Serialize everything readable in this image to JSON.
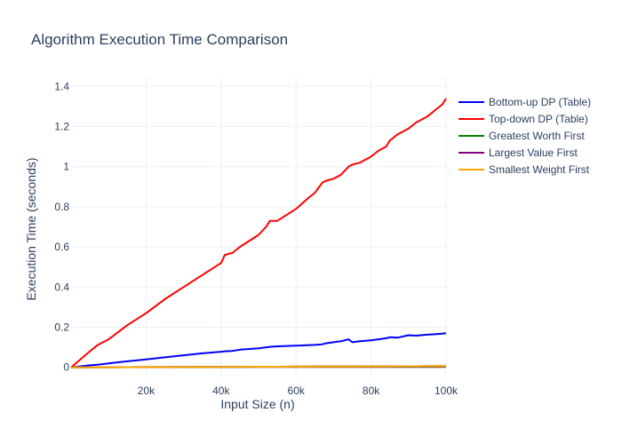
{
  "chart_data": {
    "type": "line",
    "title": "Algorithm Execution Time Comparison",
    "xlabel": "Input Size (n)",
    "ylabel": "Execution Time (seconds)",
    "xlim": [
      0,
      100000
    ],
    "ylim": [
      -0.05,
      1.45
    ],
    "x_ticks": [
      20000,
      40000,
      60000,
      80000,
      100000
    ],
    "x_tick_labels": [
      "20k",
      "40k",
      "60k",
      "80k",
      "100k"
    ],
    "y_ticks": [
      0,
      0.2,
      0.4,
      0.6,
      0.8,
      1,
      1.2,
      1.4
    ],
    "y_tick_labels": [
      "0",
      "0.2",
      "0.4",
      "0.6",
      "0.8",
      "1",
      "1.2",
      "1.4"
    ],
    "grid": true,
    "legend_position": "top-right outside",
    "x": [
      0,
      5000,
      7000,
      10000,
      15000,
      20000,
      25000,
      30000,
      35000,
      40000,
      41000,
      43000,
      45000,
      50000,
      52000,
      53000,
      55000,
      60000,
      63000,
      65000,
      67000,
      68000,
      70000,
      72000,
      74000,
      75000,
      77000,
      80000,
      82000,
      84000,
      85000,
      87000,
      90000,
      92000,
      95000,
      97000,
      99000,
      100000
    ],
    "series": [
      {
        "name": "Bottom-up DP (Table)",
        "color": "#0000ff",
        "values": [
          0,
          0.01,
          0.013,
          0.02,
          0.03,
          0.04,
          0.05,
          0.06,
          0.07,
          0.078,
          0.08,
          0.082,
          0.088,
          0.095,
          0.1,
          0.102,
          0.105,
          0.108,
          0.11,
          0.112,
          0.115,
          0.12,
          0.125,
          0.13,
          0.14,
          0.125,
          0.13,
          0.135,
          0.14,
          0.145,
          0.15,
          0.148,
          0.16,
          0.158,
          0.163,
          0.165,
          0.168,
          0.17
        ]
      },
      {
        "name": "Top-down DP (Table)",
        "color": "#ff0000",
        "values": [
          0,
          0.08,
          0.11,
          0.14,
          0.21,
          0.27,
          0.34,
          0.4,
          0.46,
          0.52,
          0.56,
          0.57,
          0.6,
          0.66,
          0.7,
          0.73,
          0.73,
          0.79,
          0.84,
          0.87,
          0.92,
          0.93,
          0.94,
          0.96,
          1.0,
          1.01,
          1.02,
          1.05,
          1.08,
          1.1,
          1.13,
          1.16,
          1.19,
          1.22,
          1.25,
          1.28,
          1.31,
          1.34
        ]
      },
      {
        "name": "Greatest Worth First",
        "color": "#008000",
        "values": [
          0,
          0.0003,
          0.0004,
          0.0006,
          0.0009,
          0.0012,
          0.0015,
          0.0018,
          0.002,
          0.0023,
          0.0024,
          0.0025,
          0.0026,
          0.0029,
          0.003,
          0.0031,
          0.0032,
          0.0035,
          0.0037,
          0.0038,
          0.0039,
          0.004,
          0.0041,
          0.0042,
          0.0043,
          0.0044,
          0.0045,
          0.0047,
          0.0048,
          0.0049,
          0.005,
          0.0051,
          0.0053,
          0.0054,
          0.0056,
          0.0057,
          0.0058,
          0.0059
        ]
      },
      {
        "name": "Largest Value First",
        "color": "#800080",
        "values": [
          0,
          0.0003,
          0.0004,
          0.0006,
          0.0009,
          0.0012,
          0.0015,
          0.0018,
          0.002,
          0.0023,
          0.0024,
          0.0025,
          0.0026,
          0.0029,
          0.003,
          0.0031,
          0.0032,
          0.0035,
          0.0037,
          0.0038,
          0.0039,
          0.004,
          0.0041,
          0.0042,
          0.0043,
          0.0044,
          0.0045,
          0.0047,
          0.0048,
          0.0049,
          0.005,
          0.0051,
          0.0053,
          0.0054,
          0.0056,
          0.0057,
          0.0058,
          0.0059
        ]
      },
      {
        "name": "Smallest Weight First",
        "color": "#ffa500",
        "values": [
          0,
          0.0003,
          0.0004,
          0.0006,
          0.0009,
          0.0012,
          0.0015,
          0.0018,
          0.002,
          0.0023,
          0.0024,
          0.0025,
          0.0026,
          0.0029,
          0.003,
          0.0031,
          0.0032,
          0.0035,
          0.0037,
          0.0038,
          0.0039,
          0.004,
          0.0041,
          0.0042,
          0.0043,
          0.0044,
          0.0045,
          0.0047,
          0.0048,
          0.0049,
          0.005,
          0.0051,
          0.0053,
          0.0054,
          0.0056,
          0.0057,
          0.0058,
          0.0059
        ]
      }
    ]
  }
}
